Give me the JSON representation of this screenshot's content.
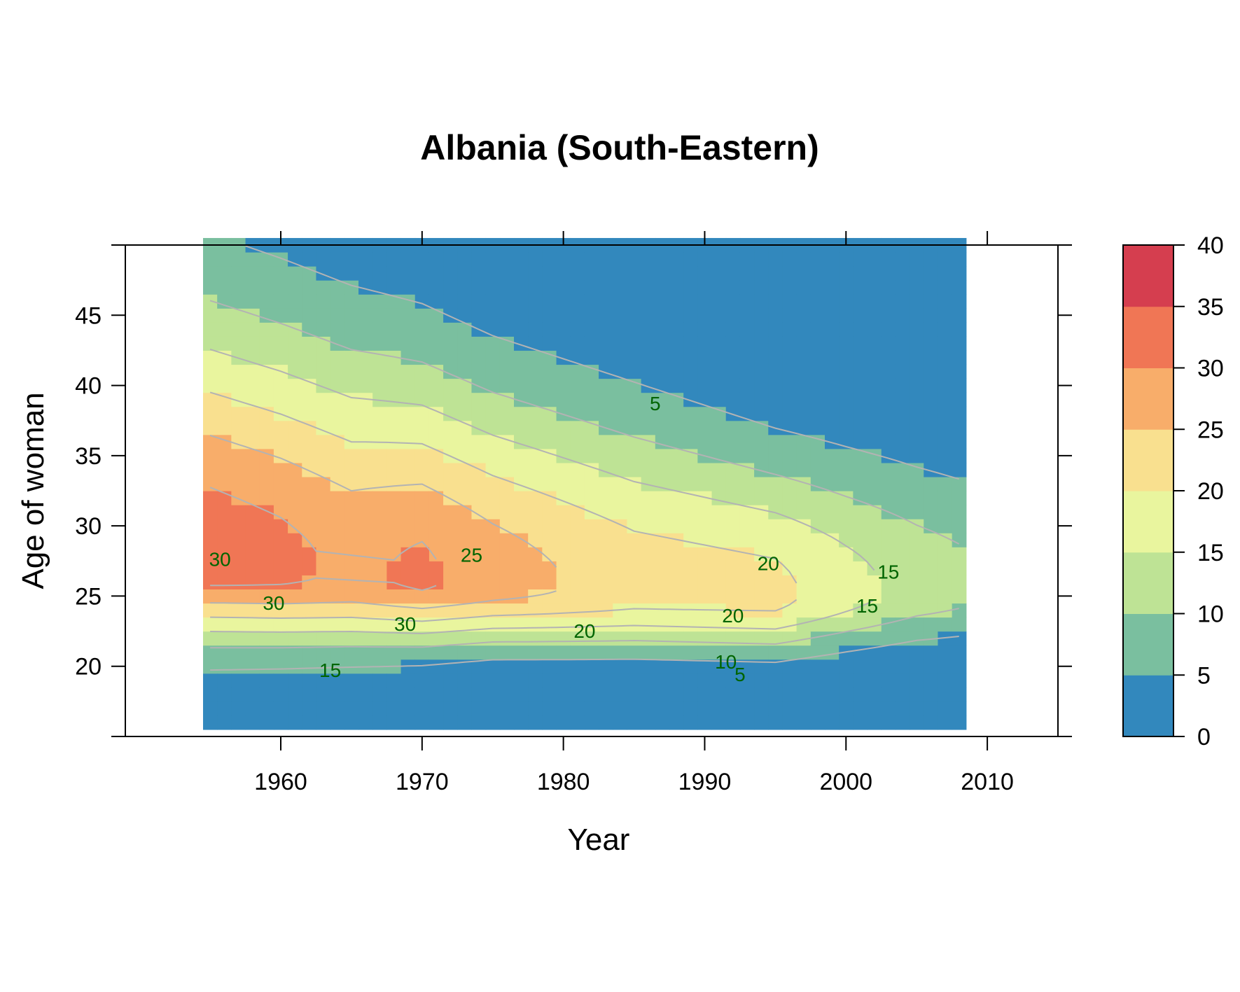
{
  "chart_data": {
    "type": "heatmap",
    "title": "Albania (South-Eastern)",
    "xlabel": "Year",
    "ylabel": "Age of woman",
    "xlim": [
      1949,
      2015
    ],
    "ylim": [
      15,
      50
    ],
    "x_ticks": [
      "1960",
      "1970",
      "1980",
      "1990",
      "2000",
      "2010"
    ],
    "y_ticks": [
      "20",
      "25",
      "30",
      "35",
      "40",
      "45"
    ],
    "x_range": [
      1954.5,
      2008.5
    ],
    "age_range": [
      15,
      50
    ],
    "legend": {
      "levels": [
        0,
        5,
        10,
        15,
        20,
        25,
        30,
        35,
        40
      ],
      "labels": [
        "0",
        "5",
        "10",
        "15",
        "20",
        "25",
        "30",
        "35",
        "40"
      ],
      "colors": [
        "#3288BD",
        "#7ABF9F",
        "#BEE395",
        "#E9F59E",
        "#F9E08F",
        "#F8AD6A",
        "#F07655",
        "#D53E4F"
      ],
      "placement": "right"
    },
    "contour_color": "#B3B3B3",
    "contour_label_color": "#006400",
    "contour_labels": [
      {
        "text": "5",
        "year": 1986.5,
        "age": 38.6
      },
      {
        "text": "25",
        "year": 1973.5,
        "age": 27.8
      },
      {
        "text": "30",
        "year": 1955.7,
        "age": 27.5
      },
      {
        "text": "30",
        "year": 1959.5,
        "age": 24.4
      },
      {
        "text": "30",
        "year": 1968.8,
        "age": 22.9
      },
      {
        "text": "20",
        "year": 1994.5,
        "age": 27.2
      },
      {
        "text": "15",
        "year": 2003.0,
        "age": 26.6
      },
      {
        "text": "15",
        "year": 2001.5,
        "age": 24.2
      },
      {
        "text": "20",
        "year": 1992.0,
        "age": 23.5
      },
      {
        "text": "20",
        "year": 1981.5,
        "age": 22.4
      },
      {
        "text": "15",
        "year": 1963.5,
        "age": 19.6
      },
      {
        "text": "10",
        "year": 1991.5,
        "age": 20.2
      },
      {
        "text": "5",
        "year": 1992.5,
        "age": 19.3
      }
    ]
  }
}
